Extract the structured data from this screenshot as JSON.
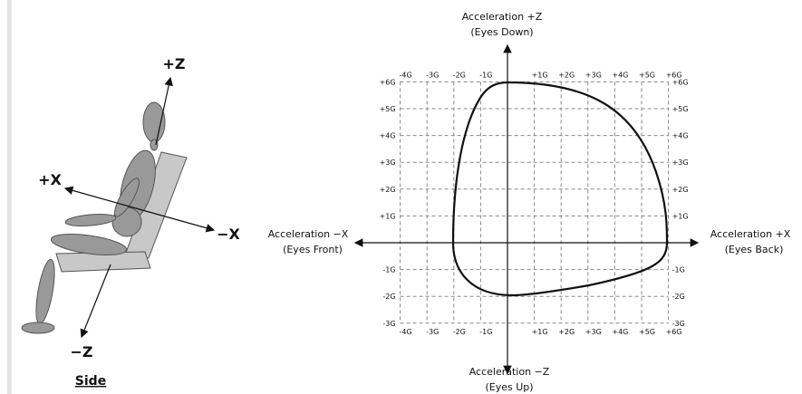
{
  "side_view": {
    "axes": {
      "plus_z": "+Z",
      "plus_x": "+X",
      "minus_x": "−X",
      "minus_z": "−Z"
    },
    "caption": "Side"
  },
  "tolerance_chart": {
    "top_label": [
      "Acceleration +Z",
      "(Eyes Down)"
    ],
    "bottom_label": [
      "Acceleration −Z",
      "(Eyes Up)"
    ],
    "left_label": [
      "Acceleration −X",
      "(Eyes Front)"
    ],
    "right_label": [
      "Acceleration +X",
      "(Eyes Back)"
    ],
    "x_ticks_top": [
      "-4G",
      "-3G",
      "-2G",
      "-1G",
      "+1G",
      "+2G",
      "+3G",
      "+4G",
      "+5G",
      "+6G"
    ],
    "x_ticks_bottom": [
      "-4G",
      "-3G",
      "-2G",
      "-1G",
      "+1G",
      "+2G",
      "+3G",
      "+4G",
      "+5G",
      "+6G"
    ],
    "y_ticks_left": [
      "+6G",
      "+5G",
      "+4G",
      "+3G",
      "+2G",
      "+1G",
      "-1G",
      "-2G",
      "-3G"
    ],
    "y_ticks_right": [
      "+6G",
      "+5G",
      "+4G",
      "+3G",
      "+2G",
      "+1G",
      "-1G",
      "-2G",
      "-3G"
    ]
  }
}
